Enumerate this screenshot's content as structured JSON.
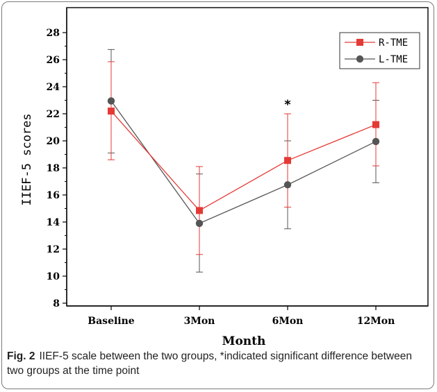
{
  "caption": {
    "label": "Fig. 2",
    "text": "IIEF-5 scale between the two groups, *indicated significant difference between two groups at the time point"
  },
  "chart_data": {
    "type": "line",
    "xlabel": "Month",
    "ylabel": "IIEF-5 scores",
    "categories": [
      "Baseline",
      "3Mon",
      "6Mon",
      "12Mon"
    ],
    "ylim": [
      8,
      28
    ],
    "yticks": [
      8,
      10,
      12,
      14,
      16,
      18,
      20,
      22,
      24,
      26,
      28
    ],
    "grid": false,
    "legend_position": "top-right",
    "series": [
      {
        "name": "R-TME",
        "color": "#e53935",
        "marker": "square",
        "values": [
          22.2,
          14.85,
          18.55,
          21.2
        ],
        "err_low": [
          18.6,
          11.6,
          15.1,
          18.15
        ],
        "err_high": [
          25.85,
          18.1,
          22.0,
          24.3
        ]
      },
      {
        "name": "L-TME",
        "color": "#555555",
        "marker": "circle",
        "values": [
          22.95,
          13.9,
          16.75,
          19.95
        ],
        "err_low": [
          19.1,
          10.3,
          13.5,
          16.9
        ],
        "err_high": [
          26.75,
          17.55,
          20.0,
          23.0
        ]
      }
    ],
    "annotations": [
      {
        "text": "*",
        "category": "6Mon",
        "y": 22.85
      }
    ]
  }
}
